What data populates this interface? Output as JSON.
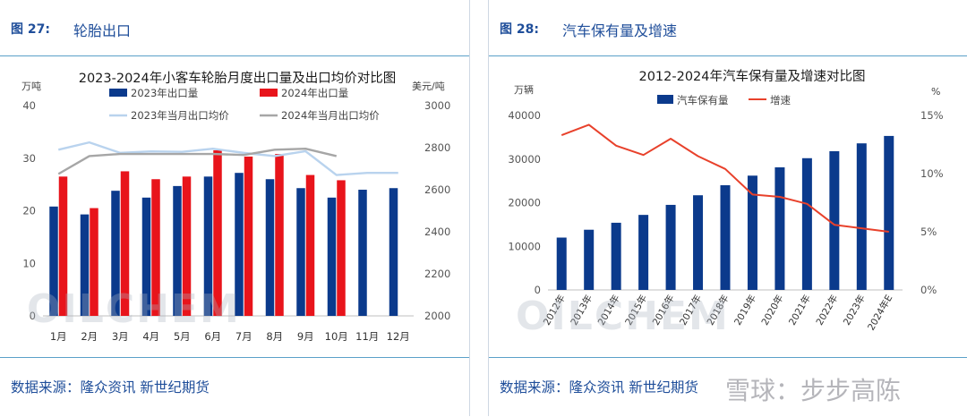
{
  "left": {
    "fig_label": "图  27:",
    "fig_name": "轮胎出口",
    "source": "数据来源：隆众资讯    新世纪期货",
    "watermark": "OILCHEM"
  },
  "right": {
    "fig_label": "图  28:",
    "fig_name": "汽车保有量及增速",
    "source": "数据来源：隆众资讯    新世纪期货",
    "watermark": "OILCHEM"
  },
  "overlay_watermark": "雪球：步步高陈",
  "chart_data": [
    {
      "type": "bar",
      "title": "2023-2024年小客车轮胎月度出口量及出口均价对比图",
      "y_unit_left": "万吨",
      "y_unit_right": "美元/吨",
      "categories": [
        "1月",
        "2月",
        "3月",
        "4月",
        "5月",
        "6月",
        "7月",
        "8月",
        "9月",
        "10月",
        "11月",
        "12月"
      ],
      "ylim_left": [
        0,
        40
      ],
      "yticks_left": [
        0,
        10,
        20,
        30,
        40
      ],
      "ylim_right": [
        2000,
        3000
      ],
      "yticks_right": [
        2000,
        2200,
        2400,
        2600,
        2800,
        3000
      ],
      "bar_series": [
        {
          "name": "2023年出口量",
          "color": "#0b3a8c",
          "values": [
            20.8,
            19.3,
            23.8,
            22.5,
            24.7,
            26.5,
            27.2,
            26.0,
            24.3,
            22.5,
            24.0,
            24.3
          ]
        },
        {
          "name": "2024年出口量",
          "color": "#e8141b",
          "values": [
            26.5,
            20.5,
            27.5,
            26.0,
            26.5,
            31.5,
            30.3,
            30.8,
            26.8,
            25.8,
            null,
            null
          ]
        }
      ],
      "line_series": [
        {
          "name": "2023年当月出口均价",
          "color": "#b9d3ee",
          "values": [
            2790,
            2825,
            2775,
            2782,
            2780,
            2795,
            2775,
            2760,
            2783,
            2670,
            2680,
            2680
          ]
        },
        {
          "name": "2024年当月出口均价",
          "color": "#a6a6a6",
          "values": [
            2675,
            2760,
            2770,
            2770,
            2770,
            2770,
            2765,
            2790,
            2795,
            2760,
            null,
            null
          ]
        }
      ],
      "grid": false,
      "legend": "top"
    },
    {
      "type": "bar",
      "title": "2012-2024年汽车保有量及增速对比图",
      "y_unit_left": "万辆",
      "y_unit_right": "%",
      "categories": [
        "2012年",
        "2013年",
        "2014年",
        "2015年",
        "2016年",
        "2017年",
        "2018年",
        "2019年",
        "2020年",
        "2021年",
        "2022年",
        "2023年",
        "2024年E"
      ],
      "ylim_left": [
        0,
        40000
      ],
      "yticks_left": [
        0,
        10000,
        20000,
        30000,
        40000
      ],
      "ylim_right": [
        0,
        15
      ],
      "yticks_right": [
        "0%",
        "5%",
        "10%",
        "15%"
      ],
      "bar_series": [
        {
          "name": "汽车保有量",
          "color": "#0b3a8c",
          "values": [
            12000,
            13800,
            15400,
            17200,
            19500,
            21700,
            24000,
            26200,
            28100,
            30200,
            31800,
            33600,
            35300
          ]
        }
      ],
      "line_series": [
        {
          "name": "增速",
          "color": "#e8412b",
          "values": [
            13.3,
            14.2,
            12.4,
            11.6,
            13.0,
            11.5,
            10.4,
            8.2,
            8.0,
            7.4,
            5.6,
            5.3,
            5.0
          ]
        }
      ],
      "grid": false,
      "legend": "top"
    }
  ]
}
